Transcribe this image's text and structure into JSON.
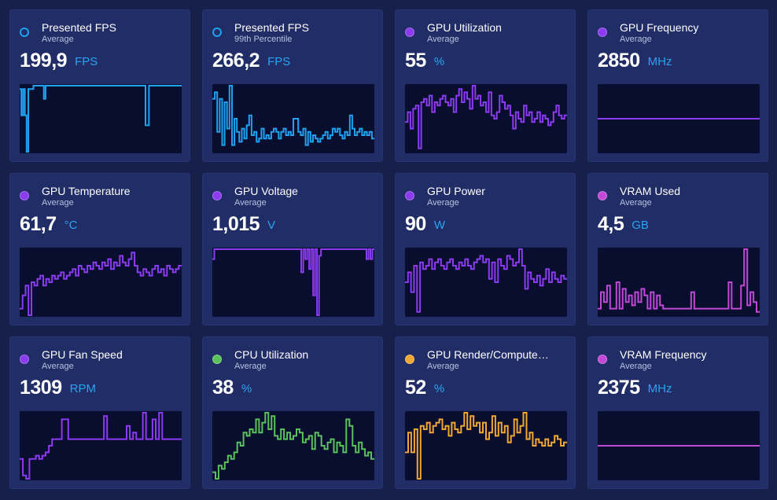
{
  "colors": {
    "background": "#16204a",
    "card": "#202d66",
    "plot": "#090d2e",
    "unit": "#2ba3f2"
  },
  "metrics": [
    {
      "title": "Presented FPS",
      "subtitle": "Average",
      "value": "199,9",
      "unit": "FPS",
      "color": "#1fa2f0",
      "dot": "hollow",
      "series": [
        0.95,
        0.55,
        0.95,
        0.55,
        0,
        0.95,
        0.95,
        0.95,
        1,
        1,
        1,
        1,
        1,
        1,
        0.8,
        1,
        1,
        1,
        1,
        1,
        1,
        1,
        1,
        1,
        1,
        1,
        1,
        1,
        1,
        1,
        1,
        1,
        1,
        1,
        1,
        1,
        1,
        1,
        1,
        1,
        1,
        1,
        1,
        1,
        1,
        1,
        1,
        1,
        1,
        1,
        1,
        1,
        1,
        1,
        1,
        1,
        1,
        1,
        1,
        1,
        1,
        1,
        1,
        1,
        1,
        1,
        1,
        1,
        1,
        1,
        1,
        1,
        1,
        0.4,
        0.4,
        1,
        1,
        1,
        1,
        1,
        1,
        1,
        1,
        1,
        1,
        1,
        1,
        1,
        1,
        1,
        1,
        1,
        1,
        1
      ]
    },
    {
      "title": "Presented FPS",
      "subtitle": "99th Percentile",
      "value": "266,2",
      "unit": "FPS",
      "color": "#1fa2f0",
      "dot": "hollow",
      "series": [
        0.8,
        0.9,
        0.3,
        0.8,
        0.1,
        0.75,
        0.35,
        1,
        0.1,
        0.5,
        0.3,
        0.15,
        0.35,
        0.2,
        0.4,
        0.55,
        0.25,
        0.3,
        0.15,
        0.2,
        0.35,
        0.2,
        0.25,
        0.2,
        0.3,
        0.35,
        0.3,
        0.2,
        0.3,
        0.35,
        0.25,
        0.3,
        0.25,
        0.5,
        0.5,
        0.3,
        0.25,
        0.35,
        0.1,
        0.3,
        0.15,
        0.25,
        0.2,
        0.15,
        0.2,
        0.25,
        0.3,
        0.2,
        0.25,
        0.35,
        0.3,
        0.35,
        0.25,
        0.2,
        0.3,
        0.25,
        0.55,
        0.35,
        0.25,
        0.3,
        0.35,
        0.25,
        0.3,
        0.25,
        0.3,
        0.2
      ]
    },
    {
      "title": "GPU Utilization",
      "subtitle": "Average",
      "value": "55",
      "unit": "%",
      "color": "#8b3bf0",
      "dot": "filled",
      "series": [
        0.45,
        0.6,
        0.35,
        0.65,
        0.7,
        0.05,
        0.75,
        0.8,
        0.7,
        0.85,
        0.6,
        0.75,
        0.7,
        0.8,
        0.85,
        0.75,
        0.7,
        0.8,
        0.6,
        0.85,
        0.95,
        0.75,
        0.9,
        0.8,
        0.65,
        1,
        0.8,
        0.85,
        0.7,
        0.75,
        0.6,
        0.9,
        0.55,
        0.5,
        0.6,
        0.85,
        0.75,
        0.65,
        0.7,
        0.55,
        0.35,
        0.6,
        0.5,
        0.45,
        0.7,
        0.55,
        0.6,
        0.45,
        0.5,
        0.6,
        0.45,
        0.55,
        0.5,
        0.4,
        0.45,
        0.6,
        0.7,
        0.55,
        0.5,
        0.55
      ]
    },
    {
      "title": "GPU Frequency",
      "subtitle": "Average",
      "value": "2850",
      "unit": "MHz",
      "color": "#8b3bf0",
      "dot": "filled",
      "series": [
        0.5,
        0.5,
        0.5,
        0.5,
        0.5,
        0.5,
        0.5,
        0.5,
        0.5,
        0.5
      ]
    },
    {
      "title": "GPU Temperature",
      "subtitle": "Average",
      "value": "61,7",
      "unit": "°C",
      "color": "#8b3bf0",
      "dot": "filled",
      "series": [
        0.1,
        0.3,
        0.45,
        0,
        0.5,
        0.45,
        0.55,
        0.6,
        0.45,
        0.55,
        0.5,
        0.6,
        0.55,
        0.6,
        0.65,
        0.55,
        0.6,
        0.65,
        0.7,
        0.6,
        0.75,
        0.7,
        0.65,
        0.75,
        0.7,
        0.8,
        0.75,
        0.7,
        0.8,
        0.75,
        0.85,
        0.7,
        0.8,
        0.75,
        0.9,
        0.8,
        0.75,
        0.85,
        0.95,
        0.75,
        0.65,
        0.6,
        0.7,
        0.65,
        0.6,
        0.7,
        0.75,
        0.65,
        0.7,
        0.6,
        0.75,
        0.7,
        0.65,
        0.7,
        0.75
      ]
    },
    {
      "title": "GPU Voltage",
      "subtitle": "Average",
      "value": "1,015",
      "unit": "V",
      "color": "#8b3bf0",
      "dot": "filled",
      "series": [
        0.85,
        1,
        1,
        1,
        1,
        1,
        1,
        1,
        1,
        1,
        1,
        1,
        1,
        1,
        1,
        1,
        1,
        1,
        1,
        1,
        1,
        1,
        1,
        1,
        1,
        1,
        1,
        1,
        1,
        1,
        1,
        1,
        1,
        1,
        1,
        1,
        1,
        1,
        1,
        1,
        1,
        1,
        1,
        1,
        1,
        0.65,
        1,
        0.85,
        1,
        0.7,
        1,
        0.3,
        1,
        0,
        0.9,
        1,
        1,
        1,
        1,
        1,
        1,
        1,
        1,
        1,
        1,
        1,
        1,
        1,
        1,
        1,
        1,
        1,
        1,
        1,
        1,
        1,
        1,
        1,
        0.85,
        1,
        0.85,
        1
      ]
    },
    {
      "title": "GPU Power",
      "subtitle": "Average",
      "value": "90",
      "unit": "W",
      "color": "#8b3bf0",
      "dot": "filled",
      "series": [
        0.5,
        0.65,
        0.35,
        0.75,
        0.05,
        0.8,
        0.7,
        0.75,
        0.85,
        0.7,
        0.8,
        0.85,
        0.75,
        0.7,
        0.8,
        0.85,
        0.75,
        0.7,
        0.8,
        0.75,
        0.85,
        0.75,
        0.7,
        0.8,
        0.85,
        0.9,
        0.8,
        0.85,
        0.55,
        0.8,
        0.5,
        0.85,
        0.75,
        0.7,
        0.9,
        0.85,
        0.75,
        0.8,
        1,
        0.75,
        0.4,
        0.65,
        0.55,
        0.5,
        0.6,
        0.45,
        0.55,
        0.7,
        0.5,
        0.65,
        0.55,
        0.5,
        0.6,
        0.55
      ]
    },
    {
      "title": "VRAM Used",
      "subtitle": "Average",
      "value": "4,5",
      "unit": "GB",
      "color": "#c04ad6",
      "dot": "filled",
      "series": [
        0.1,
        0.35,
        0.2,
        0.45,
        0.1,
        0.1,
        0.5,
        0.1,
        0.4,
        0.2,
        0.3,
        0.15,
        0.35,
        0.2,
        0.4,
        0.3,
        0.1,
        0.35,
        0.1,
        0.3,
        0.15,
        0.1,
        0.1,
        0.1,
        0.1,
        0.1,
        0.1,
        0.1,
        0.1,
        0.1,
        0.35,
        0.1,
        0.1,
        0.1,
        0.1,
        0.1,
        0.1,
        0.1,
        0.1,
        0.1,
        0.1,
        0.1,
        0.5,
        0.1,
        0.1,
        0.1,
        0.45,
        1,
        0.15,
        0.35,
        0.2,
        0.05
      ]
    },
    {
      "title": "GPU Fan Speed",
      "subtitle": "Average",
      "value": "1309",
      "unit": "RPM",
      "color": "#8b3bf0",
      "dot": "filled",
      "series": [
        0.3,
        0.05,
        0,
        0.3,
        0.3,
        0.35,
        0.3,
        0.35,
        0.4,
        0.5,
        0.6,
        0.6,
        0.6,
        0.9,
        0.9,
        0.6,
        0.6,
        0.6,
        0.6,
        0.6,
        0.6,
        0.6,
        0.6,
        0.6,
        0.6,
        0.6,
        0.95,
        0.6,
        0.6,
        0.6,
        0.6,
        0.6,
        0.6,
        0.8,
        0.6,
        0.7,
        0.6,
        0.6,
        1,
        0.6,
        0.6,
        0.9,
        0.6,
        1,
        0.6,
        0.6,
        0.6,
        0.6,
        0.6,
        0.6
      ]
    },
    {
      "title": "CPU Utilization",
      "subtitle": "Average",
      "value": "38",
      "unit": "%",
      "color": "#5bc25b",
      "dot": "filled",
      "series": [
        0.1,
        0,
        0.2,
        0.15,
        0.25,
        0.35,
        0.3,
        0.4,
        0.55,
        0.5,
        0.7,
        0.65,
        0.75,
        0.7,
        0.9,
        0.7,
        0.85,
        1,
        0.75,
        0.95,
        0.65,
        0.6,
        0.75,
        0.6,
        0.7,
        0.6,
        0.65,
        0.75,
        0.7,
        0.55,
        0.6,
        0.65,
        0.45,
        0.7,
        0.65,
        0.5,
        0.45,
        0.55,
        0.6,
        0.4,
        0.55,
        0.5,
        0.4,
        0.9,
        0.8,
        0.5,
        0.4,
        0.55,
        0.45,
        0.35,
        0.4,
        0.3
      ]
    },
    {
      "title": "GPU Render/Compute…",
      "subtitle": "Average",
      "value": "52",
      "unit": "%",
      "color": "#f0a832",
      "dot": "filled",
      "series": [
        0.4,
        0.7,
        0.4,
        0.75,
        0,
        0.8,
        0.75,
        0.85,
        0.7,
        0.8,
        0.85,
        0.9,
        0.75,
        0.8,
        0.65,
        0.85,
        0.75,
        0.7,
        0.8,
        1,
        0.75,
        0.95,
        0.8,
        0.85,
        0.7,
        0.85,
        0.6,
        0.7,
        0.95,
        0.65,
        0.85,
        0.7,
        0.8,
        0.55,
        0.65,
        0.9,
        0.7,
        0.8,
        1,
        0.6,
        0.7,
        0.5,
        0.6,
        0.55,
        0.5,
        0.6,
        0.5,
        0.55,
        0.65,
        0.6,
        0.5,
        0.55
      ]
    },
    {
      "title": "VRAM Frequency",
      "subtitle": "Average",
      "value": "2375",
      "unit": "MHz",
      "color": "#c04ad6",
      "dot": "filled",
      "series": [
        0.5,
        0.5,
        0.5,
        0.5,
        0.5,
        0.5,
        0.5,
        0.5,
        0.5,
        0.5
      ]
    }
  ]
}
